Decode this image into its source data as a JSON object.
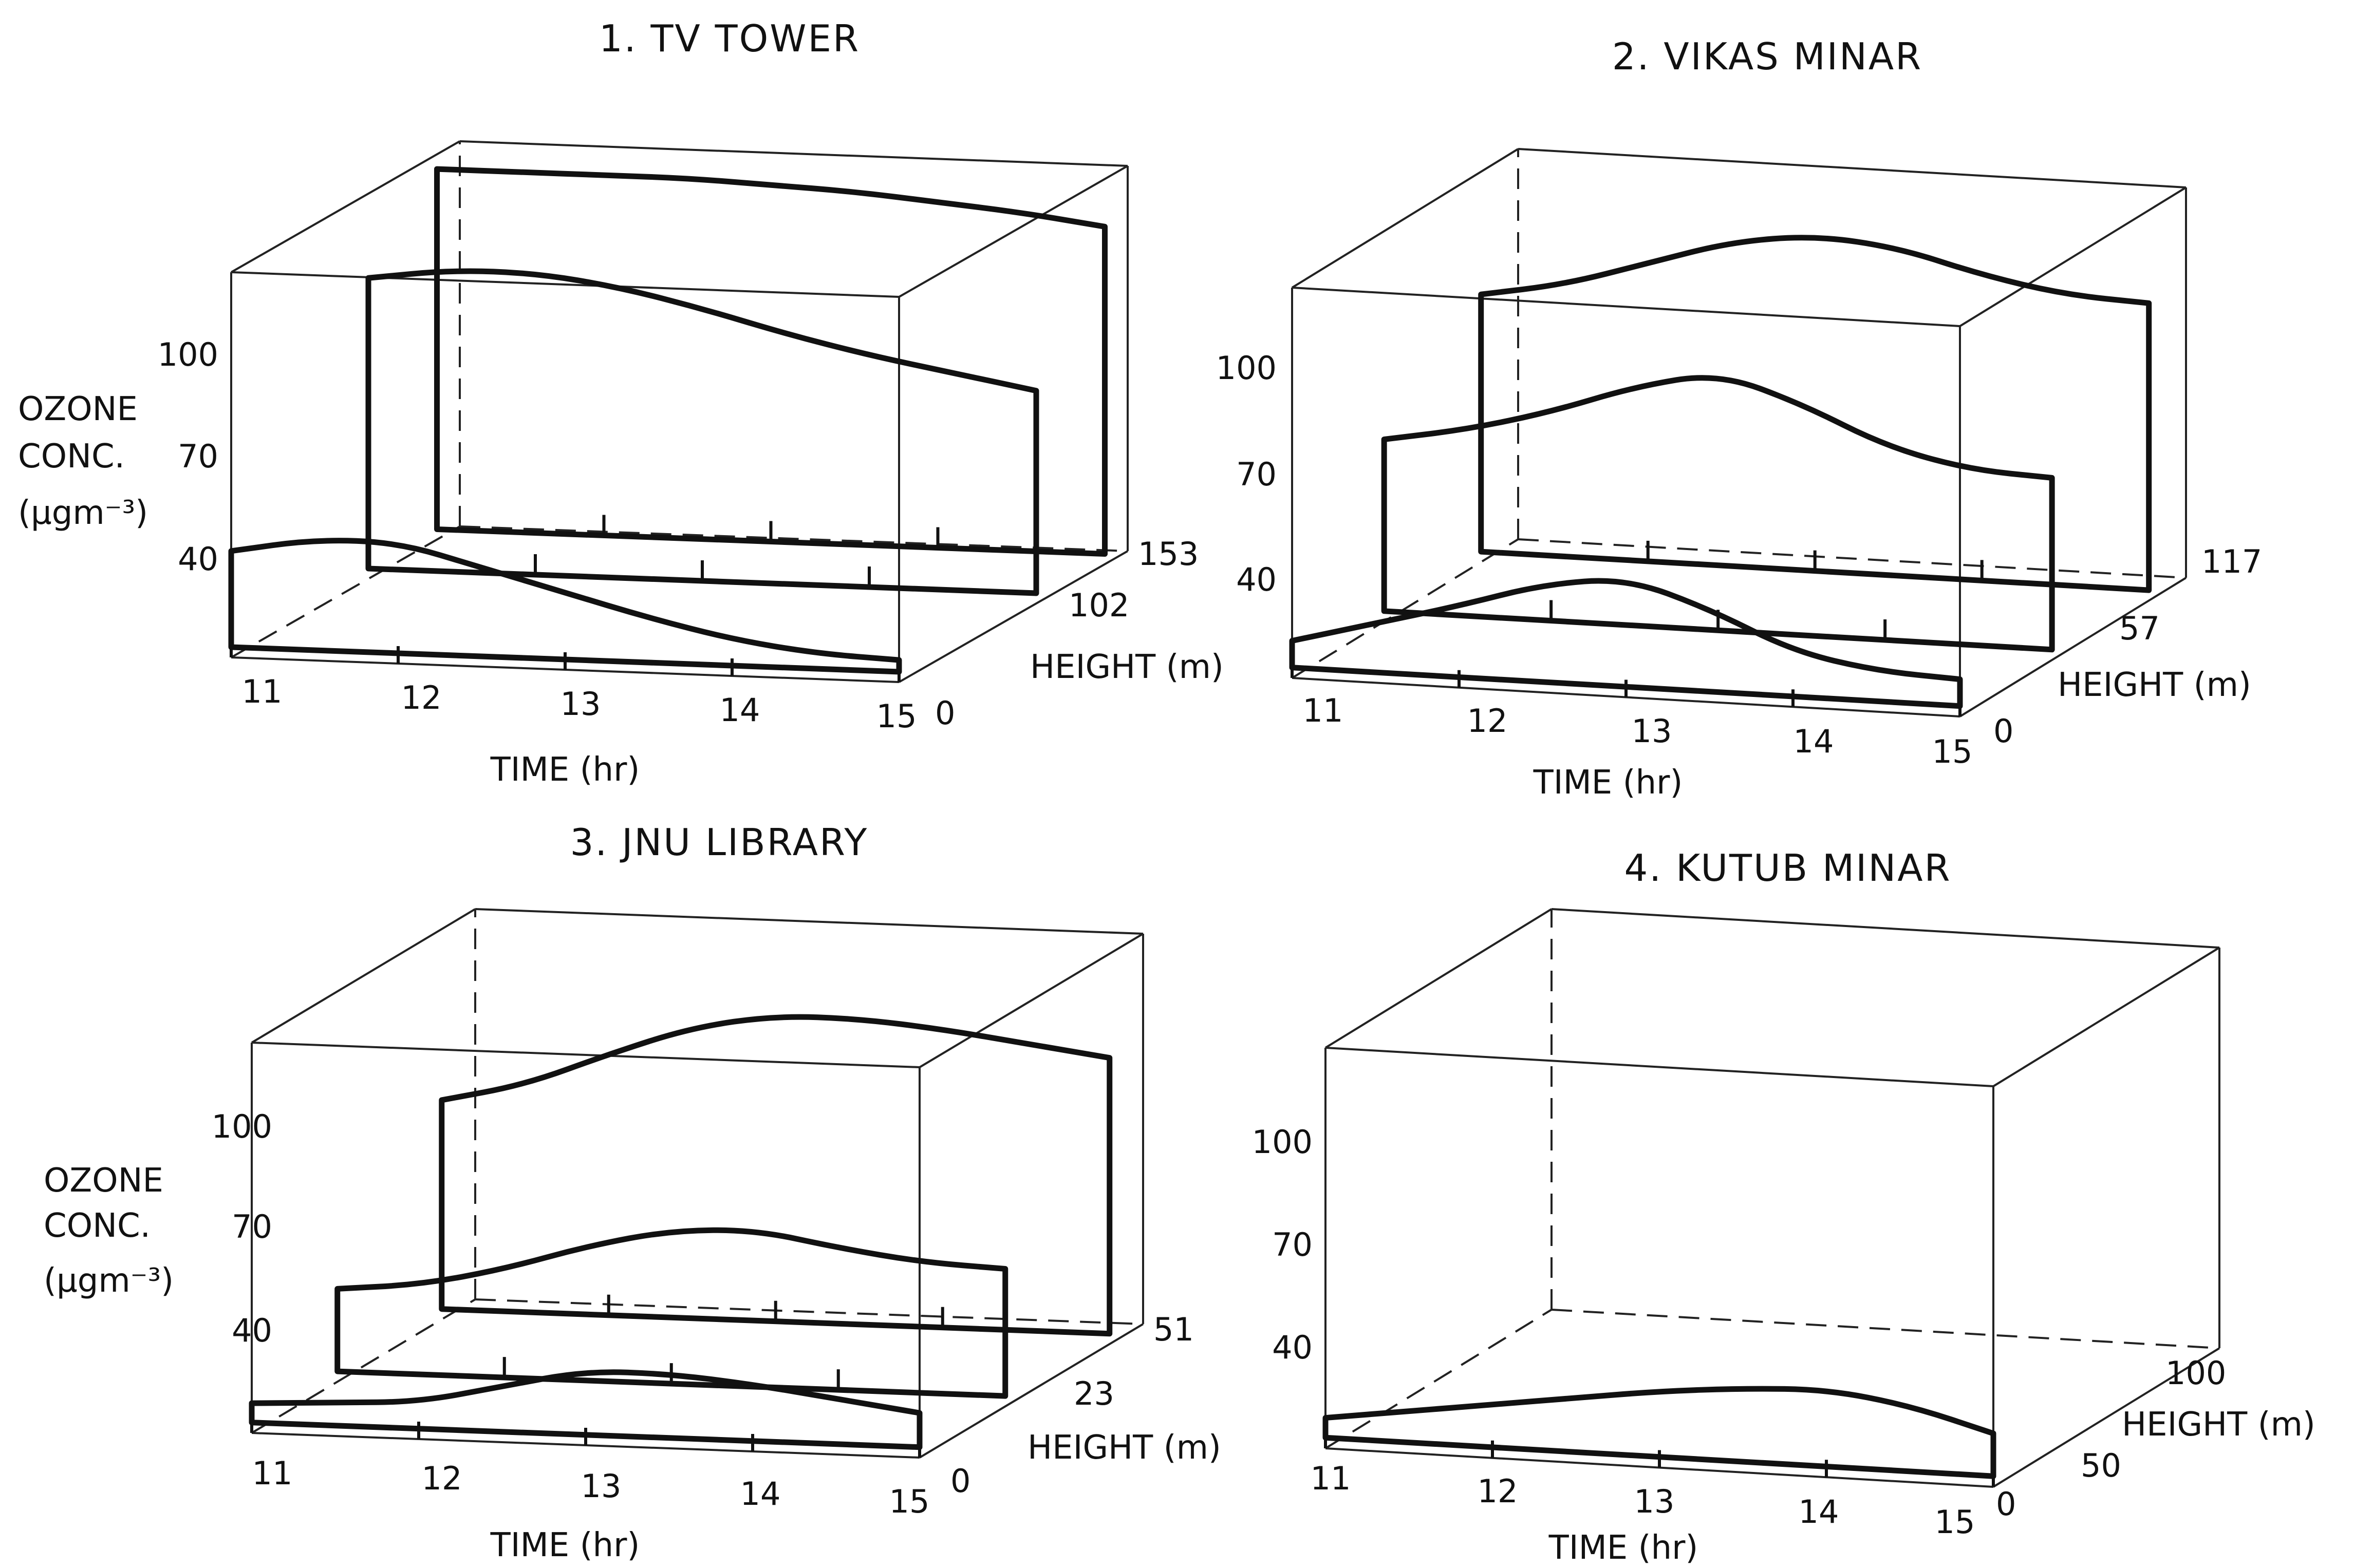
{
  "figure": {
    "panels": [
      {
        "title": "1. TV TOWER",
        "time_axis_label": "TIME (hr)",
        "height_axis_label": "HEIGHT (m)",
        "ozone_axis_label": [
          "OZONE",
          "CONC.",
          "(µgm⁻³)"
        ],
        "time_ticks": [
          "11",
          "12",
          "13",
          "14",
          "15"
        ],
        "height_ticks": [
          "0",
          "102",
          "153"
        ],
        "ozone_ticks": [
          "40",
          "70",
          "100"
        ]
      },
      {
        "title": "2. VIKAS MINAR",
        "time_axis_label": "TIME (hr)",
        "height_axis_label": "HEIGHT (m)",
        "ozone_axis_label": [],
        "time_ticks": [
          "11",
          "12",
          "13",
          "14",
          "15"
        ],
        "height_ticks": [
          "0",
          "57",
          "117"
        ],
        "ozone_ticks": [
          "40",
          "70",
          "100"
        ]
      },
      {
        "title": "3. JNU LIBRARY",
        "time_axis_label": "TIME (hr)",
        "height_axis_label": "HEIGHT (m)",
        "ozone_axis_label": [
          "OZONE",
          "CONC.",
          "(µgm⁻³)"
        ],
        "time_ticks": [
          "11",
          "12",
          "13",
          "14",
          "15"
        ],
        "height_ticks": [
          "0",
          "23",
          "51"
        ],
        "ozone_ticks": [
          "40",
          "70",
          "100"
        ]
      },
      {
        "title": "4. KUTUB MINAR",
        "time_axis_label": "TIME (hr)",
        "height_axis_label": "HEIGHT (m)",
        "ozone_axis_label": [],
        "time_ticks": [
          "11",
          "12",
          "13",
          "14",
          "15"
        ],
        "height_ticks": [
          "0",
          "50",
          "100"
        ],
        "ozone_ticks": [
          "40",
          "70",
          "100"
        ]
      }
    ]
  },
  "chart_data": [
    {
      "type": "line",
      "subtype": "3d-ribbon",
      "title": "1. TV TOWER",
      "xlabel": "TIME (hr)",
      "ylabel": "HEIGHT (m)",
      "zlabel": "OZONE CONC. (µgm⁻³)",
      "xlim": [
        11,
        15
      ],
      "zlim": [
        23,
        128
      ],
      "height_depth_max": 170,
      "series": [
        {
          "height": 0,
          "x": [
            11,
            11.5,
            12,
            12.5,
            13,
            13.5,
            14,
            14.5,
            15
          ],
          "z": [
            52,
            56,
            56,
            50,
            44,
            38,
            33,
            30,
            29
          ]
        },
        {
          "height": 102,
          "x": [
            11,
            11.5,
            12,
            12.5,
            13,
            13.5,
            14,
            14.5,
            15
          ],
          "z": [
            105,
            108,
            108,
            105,
            100,
            94,
            89,
            85,
            81
          ]
        },
        {
          "height": 153,
          "x": [
            11,
            11.5,
            12,
            12.5,
            13,
            13.5,
            14,
            14.5,
            15
          ],
          "z": [
            124,
            124,
            124,
            124,
            123,
            122,
            120,
            118,
            115
          ]
        }
      ]
    },
    {
      "type": "line",
      "subtype": "3d-ribbon",
      "title": "2. VIKAS MINAR",
      "xlabel": "TIME (hr)",
      "ylabel": "HEIGHT (m)",
      "zlabel": "",
      "xlim": [
        11,
        15
      ],
      "zlim": [
        23,
        128
      ],
      "height_depth_max": 140,
      "series": [
        {
          "height": 0,
          "x": [
            11,
            11.5,
            12,
            12.5,
            13,
            13.5,
            14,
            14.5,
            15
          ],
          "z": [
            33,
            39,
            45,
            52,
            55,
            48,
            38,
            34,
            33
          ]
        },
        {
          "height": 57,
          "x": [
            11,
            11.5,
            12,
            12.5,
            13,
            13.5,
            14,
            14.5,
            15
          ],
          "z": [
            72,
            76,
            82,
            90,
            95,
            88,
            78,
            73,
            72
          ]
        },
        {
          "height": 117,
          "x": [
            11,
            11.5,
            12,
            12.5,
            13,
            13.5,
            14,
            14.5,
            15
          ],
          "z": [
            95,
            99,
            106,
            113,
            116,
            114,
            108,
            104,
            103
          ]
        }
      ]
    },
    {
      "type": "line",
      "subtype": "3d-ribbon",
      "title": "3. JNU LIBRARY",
      "xlabel": "TIME (hr)",
      "ylabel": "HEIGHT (m)",
      "zlabel": "OZONE CONC. (µgm⁻³)",
      "xlim": [
        11,
        15
      ],
      "zlim": [
        23,
        128
      ],
      "height_depth_max": 60,
      "series": [
        {
          "height": 0,
          "x": [
            11,
            11.5,
            12,
            12.5,
            13,
            13.5,
            14,
            14.5,
            15
          ],
          "z": [
            31,
            32,
            33,
            38,
            43,
            43,
            41,
            38,
            35
          ]
        },
        {
          "height": 23,
          "x": [
            11,
            11.5,
            12,
            12.5,
            13,
            13.5,
            14,
            14.5,
            15
          ],
          "z": [
            48,
            50,
            55,
            62,
            67,
            68,
            64,
            61,
            60
          ]
        },
        {
          "height": 51,
          "x": [
            11,
            11.5,
            12,
            12.5,
            13,
            13.5,
            14,
            14.5,
            15
          ],
          "z": [
            82,
            87,
            96,
            104,
            108,
            108,
            106,
            103,
            100
          ]
        }
      ]
    },
    {
      "type": "line",
      "subtype": "3d-ribbon",
      "title": "4. KUTUB MINAR",
      "xlabel": "TIME (hr)",
      "ylabel": "HEIGHT (m)",
      "zlabel": "",
      "xlim": [
        11,
        15
      ],
      "zlim": [
        23,
        128
      ],
      "height_depth_max": 140,
      "series": [
        {
          "height": 0,
          "x": [
            11,
            11.5,
            12,
            12.5,
            13,
            13.5,
            14,
            14.5,
            15
          ],
          "z": [
            31,
            34,
            37,
            40,
            43,
            45,
            46,
            43,
            37
          ]
        }
      ]
    }
  ]
}
